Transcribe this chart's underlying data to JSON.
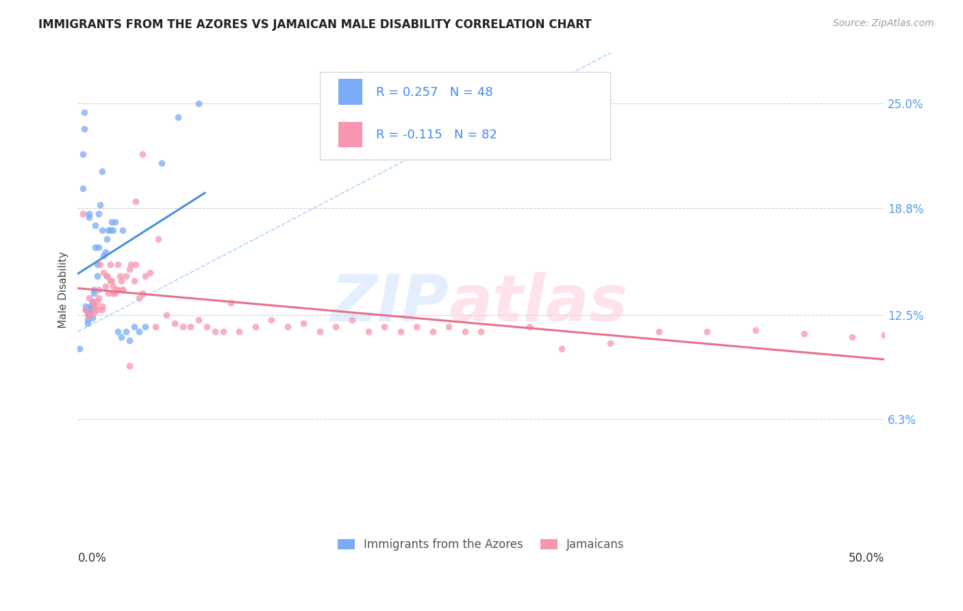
{
  "title": "IMMIGRANTS FROM THE AZORES VS JAMAICAN MALE DISABILITY CORRELATION CHART",
  "source": "Source: ZipAtlas.com",
  "ylabel": "Male Disability",
  "ytick_labels": [
    "25.0%",
    "18.8%",
    "12.5%",
    "6.3%"
  ],
  "ytick_values": [
    0.25,
    0.188,
    0.125,
    0.063
  ],
  "xlim": [
    0.0,
    0.5
  ],
  "ylim": [
    0.0,
    0.28
  ],
  "legend_label1": "Immigrants from the Azores",
  "legend_label2": "Jamaicans",
  "R1": 0.257,
  "N1": 48,
  "R2": -0.115,
  "N2": 82,
  "color_blue": "#7AABF7",
  "color_pink": "#F896B0",
  "line_blue": "#4A90D9",
  "line_pink": "#E8708A",
  "ref_line_color": "#AACCFF",
  "azores_x": [
    0.001,
    0.003,
    0.003,
    0.005,
    0.005,
    0.006,
    0.006,
    0.007,
    0.007,
    0.008,
    0.008,
    0.009,
    0.009,
    0.01,
    0.01,
    0.011,
    0.011,
    0.012,
    0.012,
    0.013,
    0.013,
    0.014,
    0.015,
    0.015,
    0.016,
    0.017,
    0.018,
    0.019,
    0.02,
    0.021,
    0.022,
    0.023,
    0.025,
    0.027,
    0.028,
    0.03,
    0.032,
    0.035,
    0.038,
    0.042,
    0.052,
    0.062,
    0.004,
    0.004,
    0.006,
    0.007,
    0.009,
    0.075
  ],
  "azores_y": [
    0.105,
    0.2,
    0.22,
    0.13,
    0.128,
    0.122,
    0.12,
    0.185,
    0.183,
    0.13,
    0.128,
    0.133,
    0.13,
    0.14,
    0.138,
    0.178,
    0.165,
    0.148,
    0.155,
    0.185,
    0.165,
    0.19,
    0.21,
    0.175,
    0.16,
    0.162,
    0.17,
    0.175,
    0.175,
    0.18,
    0.175,
    0.18,
    0.115,
    0.112,
    0.175,
    0.115,
    0.11,
    0.118,
    0.115,
    0.118,
    0.215,
    0.242,
    0.245,
    0.235,
    0.127,
    0.125,
    0.123,
    0.25
  ],
  "jamaicans_x": [
    0.003,
    0.005,
    0.006,
    0.007,
    0.008,
    0.009,
    0.01,
    0.011,
    0.012,
    0.013,
    0.014,
    0.015,
    0.016,
    0.017,
    0.018,
    0.019,
    0.02,
    0.021,
    0.022,
    0.023,
    0.024,
    0.025,
    0.026,
    0.027,
    0.028,
    0.03,
    0.032,
    0.033,
    0.035,
    0.036,
    0.038,
    0.04,
    0.042,
    0.045,
    0.048,
    0.05,
    0.055,
    0.06,
    0.065,
    0.07,
    0.075,
    0.08,
    0.085,
    0.09,
    0.095,
    0.1,
    0.11,
    0.12,
    0.13,
    0.14,
    0.15,
    0.16,
    0.17,
    0.18,
    0.19,
    0.2,
    0.21,
    0.22,
    0.23,
    0.24,
    0.25,
    0.28,
    0.3,
    0.33,
    0.36,
    0.39,
    0.42,
    0.45,
    0.48,
    0.5,
    0.01,
    0.012,
    0.013,
    0.015,
    0.018,
    0.02,
    0.022,
    0.025,
    0.028,
    0.032,
    0.036,
    0.04
  ],
  "jamaicans_y": [
    0.185,
    0.128,
    0.125,
    0.135,
    0.125,
    0.132,
    0.128,
    0.13,
    0.133,
    0.14,
    0.155,
    0.13,
    0.15,
    0.142,
    0.148,
    0.138,
    0.155,
    0.145,
    0.142,
    0.138,
    0.14,
    0.14,
    0.148,
    0.145,
    0.14,
    0.148,
    0.095,
    0.155,
    0.145,
    0.155,
    0.135,
    0.138,
    0.148,
    0.15,
    0.118,
    0.17,
    0.125,
    0.12,
    0.118,
    0.118,
    0.122,
    0.118,
    0.115,
    0.115,
    0.132,
    0.115,
    0.118,
    0.122,
    0.118,
    0.12,
    0.115,
    0.118,
    0.122,
    0.115,
    0.118,
    0.115,
    0.118,
    0.115,
    0.118,
    0.115,
    0.115,
    0.118,
    0.105,
    0.108,
    0.115,
    0.115,
    0.116,
    0.114,
    0.112,
    0.113,
    0.126,
    0.128,
    0.135,
    0.128,
    0.148,
    0.145,
    0.138,
    0.155,
    0.14,
    0.152,
    0.192,
    0.22
  ]
}
